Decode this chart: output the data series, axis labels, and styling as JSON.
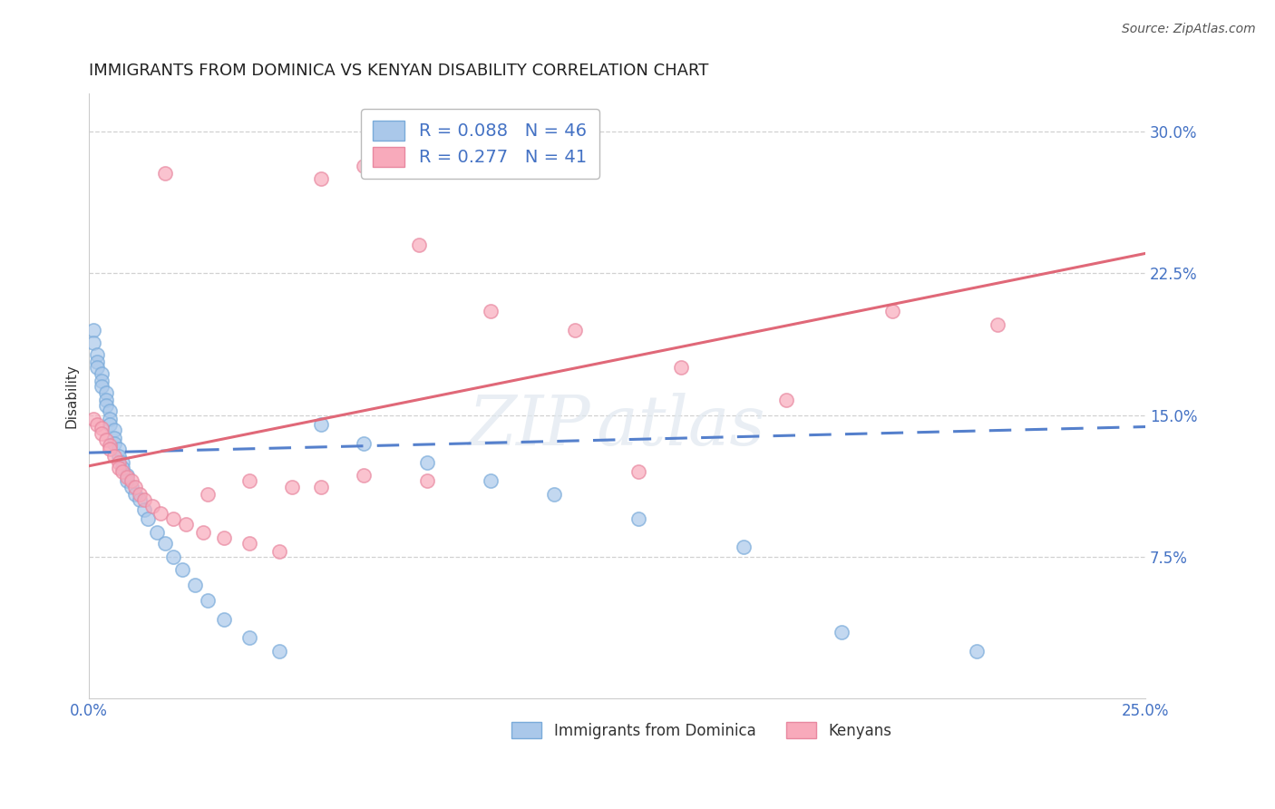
{
  "title": "IMMIGRANTS FROM DOMINICA VS KENYAN DISABILITY CORRELATION CHART",
  "source": "Source: ZipAtlas.com",
  "ylabel": "Disability",
  "xlim": [
    0.0,
    0.25
  ],
  "ylim": [
    0.0,
    0.32
  ],
  "background_color": "#ffffff",
  "grid_color": "#cccccc",
  "scatter_size": 120,
  "blue_face_color": "#aac8ea",
  "blue_edge_color": "#7aabda",
  "pink_face_color": "#f8aabb",
  "pink_edge_color": "#e888a0",
  "blue_line_color": "#5580cc",
  "pink_line_color": "#e06878",
  "title_fontsize": 13,
  "axis_label_fontsize": 11,
  "tick_fontsize": 12,
  "R_blue": 0.088,
  "N_blue": 46,
  "R_pink": 0.277,
  "N_pink": 41,
  "blue_x": [
    0.001,
    0.001,
    0.002,
    0.002,
    0.002,
    0.003,
    0.003,
    0.003,
    0.004,
    0.004,
    0.004,
    0.005,
    0.005,
    0.005,
    0.006,
    0.006,
    0.006,
    0.007,
    0.007,
    0.008,
    0.008,
    0.009,
    0.009,
    0.01,
    0.011,
    0.012,
    0.013,
    0.014,
    0.016,
    0.018,
    0.02,
    0.022,
    0.025,
    0.028,
    0.032,
    0.038,
    0.045,
    0.055,
    0.065,
    0.08,
    0.095,
    0.11,
    0.13,
    0.155,
    0.178,
    0.21
  ],
  "blue_y": [
    0.195,
    0.188,
    0.182,
    0.178,
    0.175,
    0.172,
    0.168,
    0.165,
    0.162,
    0.158,
    0.155,
    0.152,
    0.148,
    0.145,
    0.142,
    0.138,
    0.135,
    0.132,
    0.128,
    0.125,
    0.122,
    0.118,
    0.115,
    0.112,
    0.108,
    0.105,
    0.1,
    0.095,
    0.088,
    0.082,
    0.075,
    0.068,
    0.06,
    0.052,
    0.042,
    0.032,
    0.025,
    0.145,
    0.135,
    0.125,
    0.115,
    0.108,
    0.095,
    0.08,
    0.035,
    0.025
  ],
  "pink_x": [
    0.001,
    0.002,
    0.003,
    0.003,
    0.004,
    0.005,
    0.005,
    0.006,
    0.007,
    0.007,
    0.008,
    0.009,
    0.01,
    0.011,
    0.012,
    0.013,
    0.015,
    0.017,
    0.02,
    0.023,
    0.027,
    0.032,
    0.038,
    0.045,
    0.055,
    0.065,
    0.078,
    0.095,
    0.115,
    0.14,
    0.165,
    0.19,
    0.215,
    0.065,
    0.13,
    0.08,
    0.048,
    0.028,
    0.018,
    0.038,
    0.055
  ],
  "pink_y": [
    0.148,
    0.145,
    0.143,
    0.14,
    0.137,
    0.134,
    0.132,
    0.128,
    0.125,
    0.122,
    0.12,
    0.117,
    0.115,
    0.112,
    0.108,
    0.105,
    0.102,
    0.098,
    0.095,
    0.092,
    0.088,
    0.085,
    0.082,
    0.078,
    0.275,
    0.282,
    0.24,
    0.205,
    0.195,
    0.175,
    0.158,
    0.205,
    0.198,
    0.118,
    0.12,
    0.115,
    0.112,
    0.108,
    0.278,
    0.115,
    0.112
  ],
  "line_intercept_blue": 0.13,
  "line_slope_blue": 0.055,
  "line_intercept_pink": 0.123,
  "line_slope_pink": 0.45
}
